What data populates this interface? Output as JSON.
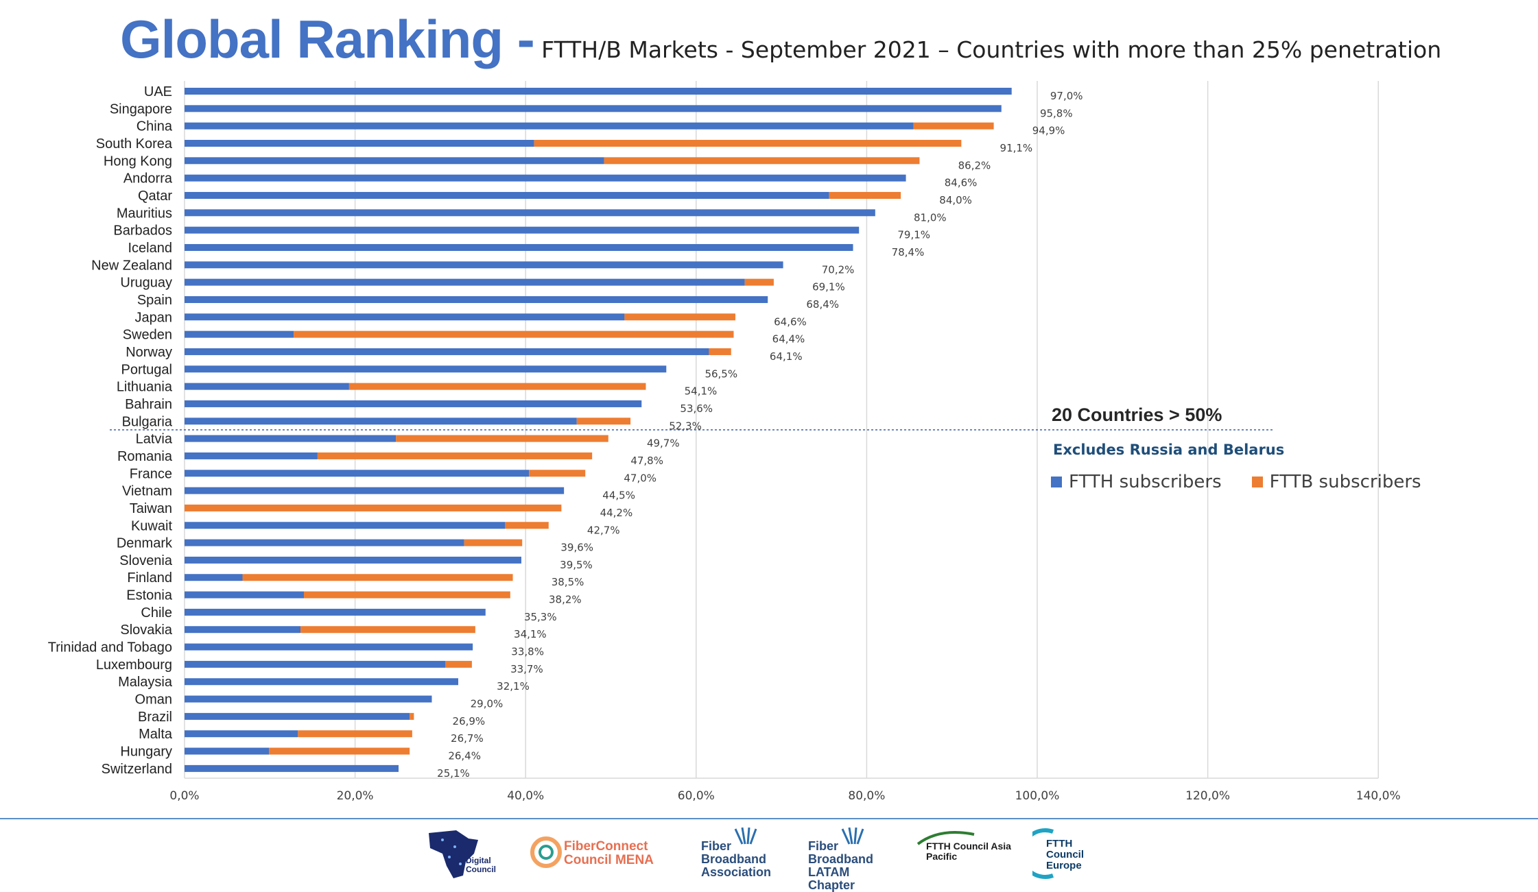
{
  "title": {
    "main": "Global Ranking -",
    "subtitle": "FTTH/B Markets - September 2021 – Countries with more than 25% penetration"
  },
  "colors": {
    "ftth": "#4472c4",
    "fttb": "#ed7d31",
    "grid": "#d9d9d9",
    "divider": "#2f5597"
  },
  "annotations": {
    "threshold": "20 Countries > 50%",
    "note": "Excludes Russia and Belarus"
  },
  "legend": {
    "ftth": "FTTH subscribers",
    "fttb": "FTTB subscribers"
  },
  "chart_data": {
    "type": "bar",
    "orientation": "horizontal",
    "stacked": true,
    "xlim": [
      0,
      140
    ],
    "x_ticks": [
      0,
      20,
      40,
      60,
      80,
      100,
      120,
      140
    ],
    "x_tick_labels": [
      "0,0%",
      "20,0%",
      "40,0%",
      "60,0%",
      "80,0%",
      "100,0%",
      "120,0%",
      "140,0%"
    ],
    "grid": "vertical",
    "legend_position": "right",
    "divider_after_category": "Bulgaria",
    "categories": [
      "UAE",
      "Singapore",
      "China",
      "South Korea",
      "Hong Kong",
      "Andorra",
      "Qatar",
      "Mauritius",
      "Barbados",
      "Iceland",
      "New Zealand",
      "Uruguay",
      "Spain",
      "Japan",
      "Sweden",
      "Norway",
      "Portugal",
      "Lithuania",
      "Bahrain",
      "Bulgaria",
      "Latvia",
      "Romania",
      "France",
      "Vietnam",
      "Taiwan",
      "Kuwait",
      "Denmark",
      "Slovenia",
      "Finland",
      "Estonia",
      "Chile",
      "Slovakia",
      "Trinidad and Tobago",
      "Luxembourg",
      "Malaysia",
      "Oman",
      "Brazil",
      "Malta",
      "Hungary",
      "Switzerland"
    ],
    "series": [
      {
        "name": "FTTH subscribers",
        "values": [
          97.0,
          95.8,
          85.5,
          41.0,
          49.2,
          84.6,
          75.6,
          81.0,
          79.1,
          78.4,
          70.2,
          65.7,
          68.4,
          51.6,
          12.8,
          61.5,
          56.5,
          19.3,
          53.6,
          46.0,
          24.8,
          15.6,
          40.4,
          44.5,
          0.0,
          37.6,
          32.8,
          39.5,
          6.8,
          14.0,
          35.3,
          13.6,
          33.8,
          30.6,
          32.1,
          29.0,
          26.4,
          13.3,
          9.9,
          25.1
        ]
      },
      {
        "name": "FTTB subscribers",
        "values": [
          0.0,
          0.0,
          9.4,
          50.1,
          37.0,
          0.0,
          8.4,
          0.0,
          0.0,
          0.0,
          0.0,
          3.4,
          0.0,
          13.0,
          51.6,
          2.6,
          0.0,
          34.8,
          0.0,
          6.3,
          24.9,
          32.2,
          6.6,
          0.0,
          44.2,
          5.1,
          6.8,
          0.0,
          31.7,
          24.2,
          0.0,
          20.5,
          0.0,
          3.1,
          0.0,
          0.0,
          0.5,
          13.4,
          16.5,
          0.0
        ]
      }
    ],
    "data_labels": [
      "97,0%",
      "95,8%",
      "94,9%",
      "91,1%",
      "86,2%",
      "84,6%",
      "84,0%",
      "81,0%",
      "79,1%",
      "78,4%",
      "70,2%",
      "69,1%",
      "68,4%",
      "64,6%",
      "64,4%",
      "64,1%",
      "56,5%",
      "54,1%",
      "53,6%",
      "52,3%",
      "49,7%",
      "47,8%",
      "47,0%",
      "44,5%",
      "44,2%",
      "42,7%",
      "39,6%",
      "39,5%",
      "38,5%",
      "38,2%",
      "35,3%",
      "34,1%",
      "33,8%",
      "33,7%",
      "32,1%",
      "29,0%",
      "26,9%",
      "26,7%",
      "26,4%",
      "25,1%"
    ]
  },
  "logos": [
    "Digital Council",
    "FiberConnect Council MENA",
    "Fiber Broadband Association",
    "Fiber Broadband LATAM Chapter",
    "FTTH Council Asia Pacific",
    "FTTH Council Europe"
  ]
}
